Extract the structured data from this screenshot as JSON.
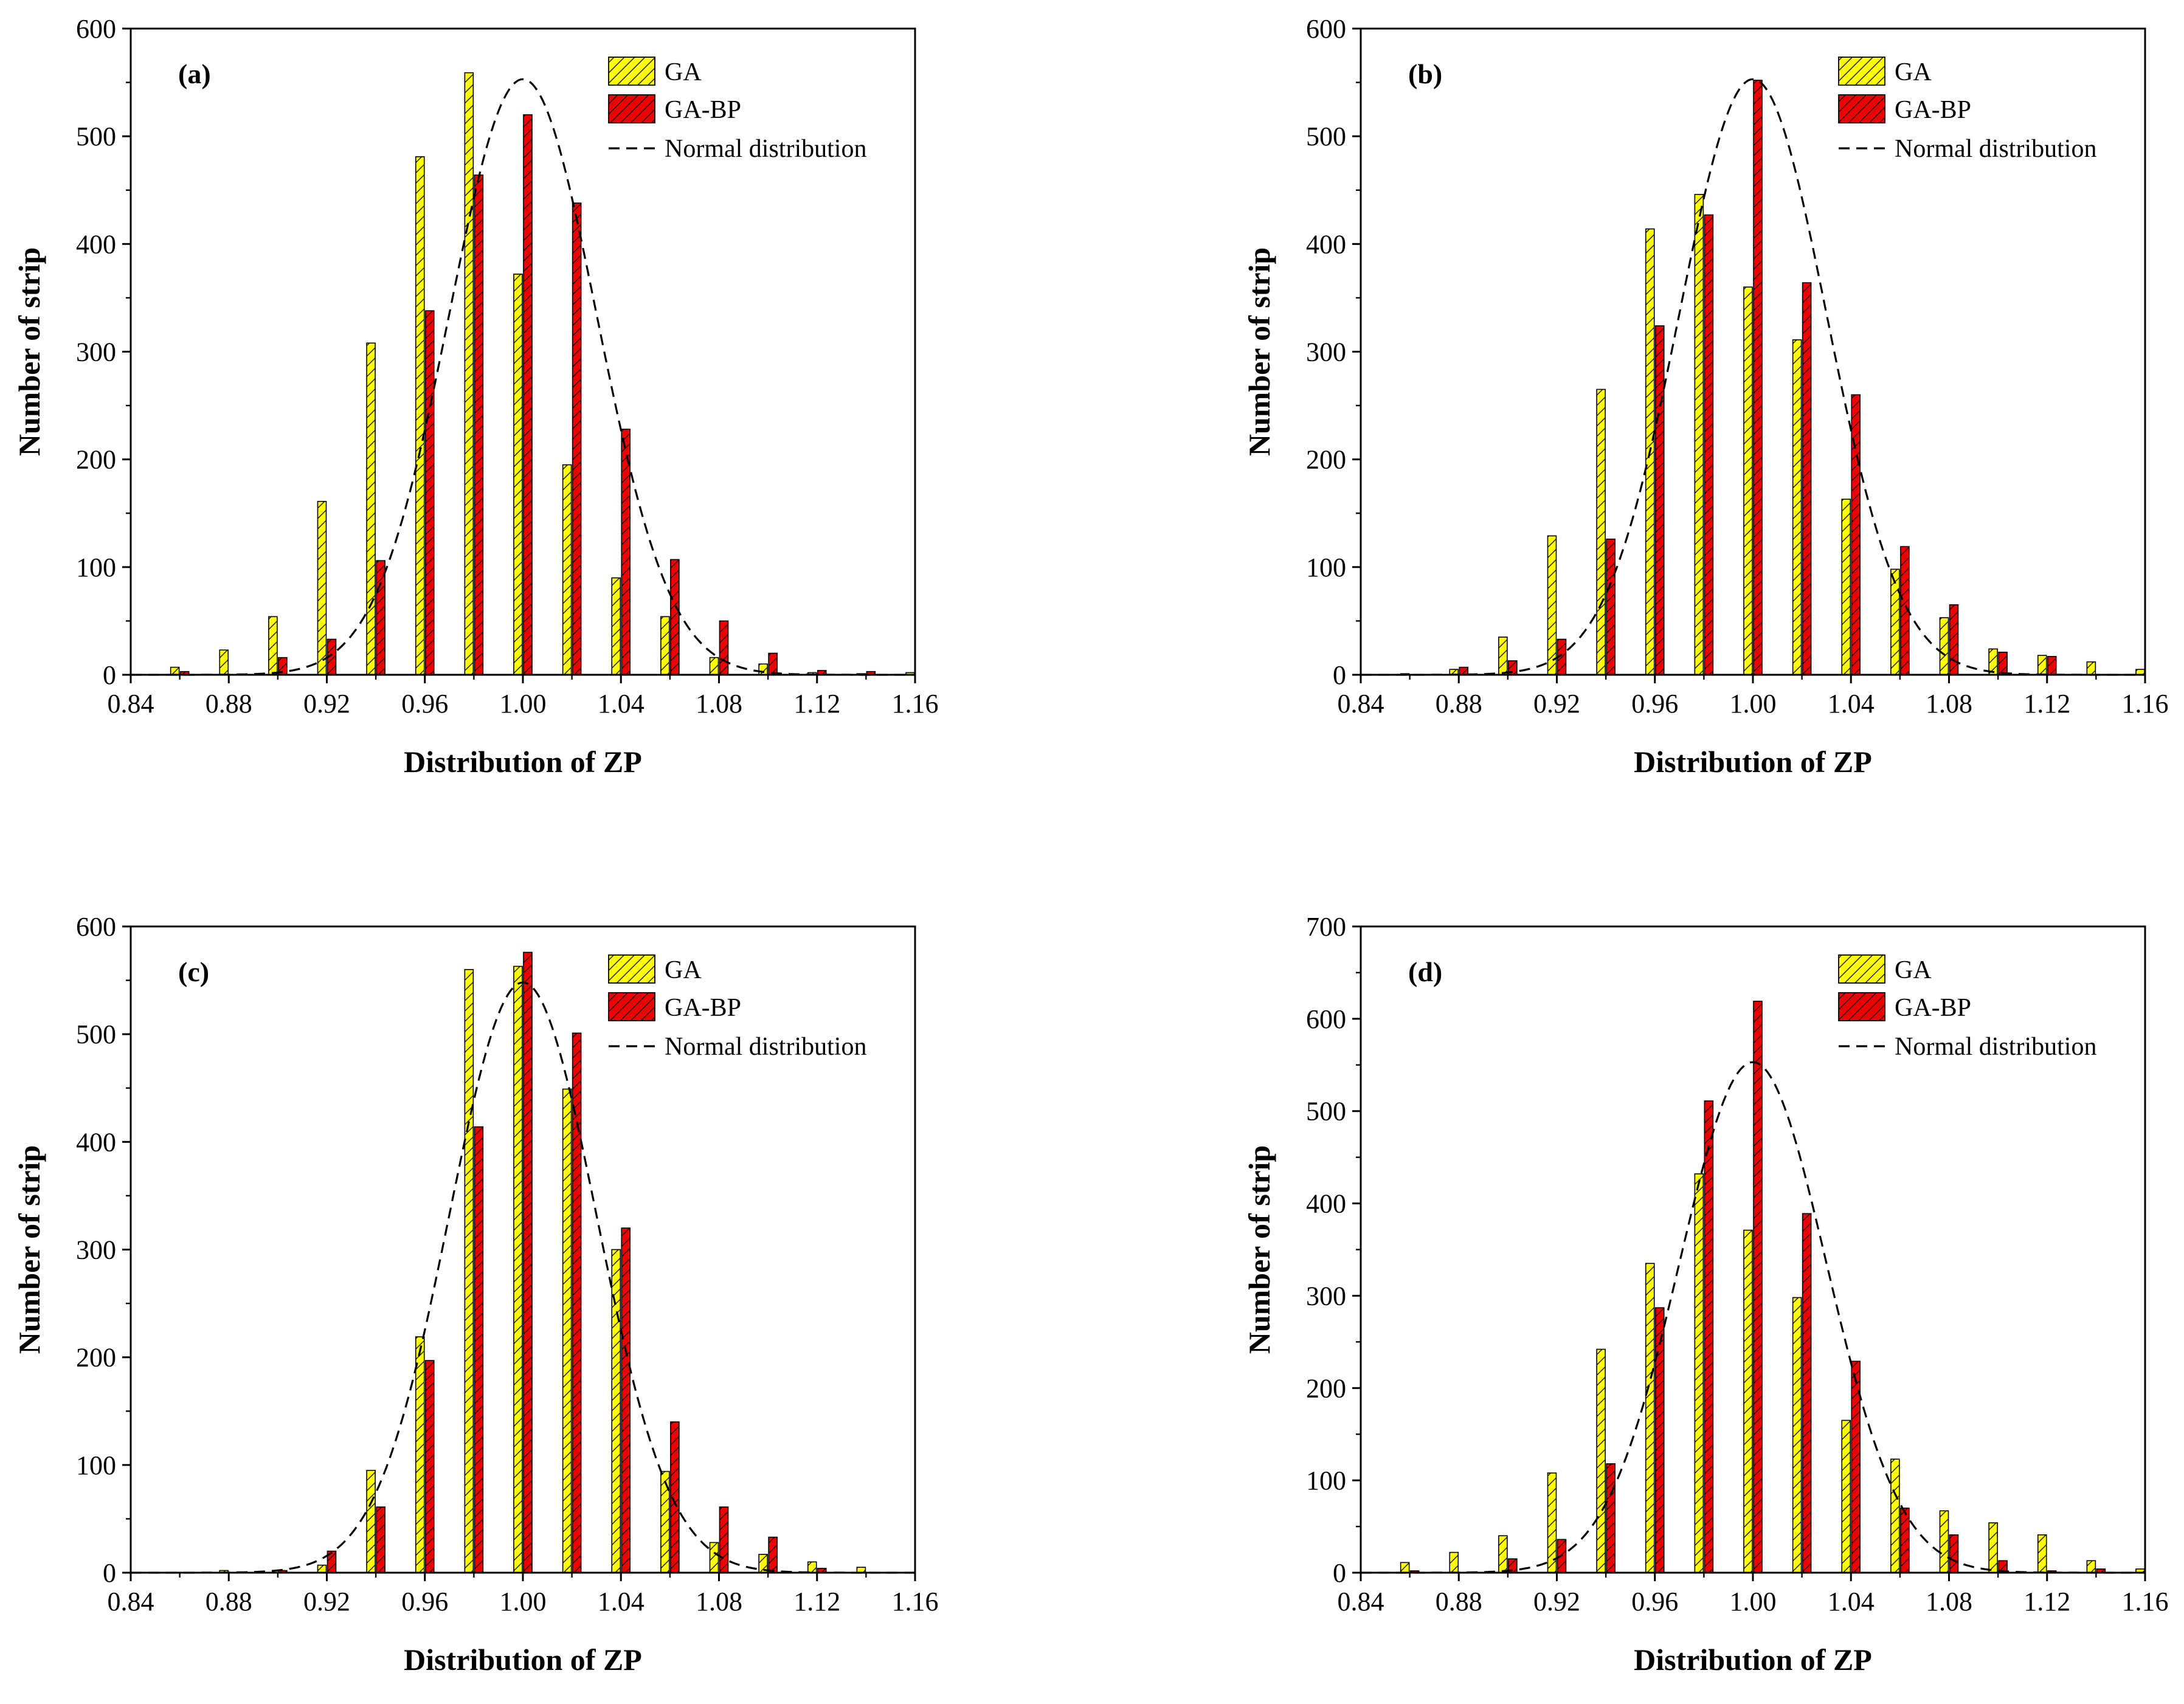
{
  "palette": {
    "ga_fill": "#ffff00",
    "gabp_fill": "#ee0000",
    "edge": "#000000",
    "curve": "#000000"
  },
  "chart_data": [
    {
      "type": "bar",
      "panel_label": "(a)",
      "xlabel": "Distribution of ZP",
      "ylabel": "Number of strip",
      "xlim": [
        0.84,
        1.16
      ],
      "ylim": [
        0,
        600
      ],
      "xticks": [
        "0.84",
        "0.88",
        "0.92",
        "0.96",
        "1.00",
        "1.04",
        "1.08",
        "1.12",
        "1.16"
      ],
      "yticks": [
        "0",
        "100",
        "200",
        "300",
        "400",
        "500",
        "600"
      ],
      "x": [
        0.86,
        0.88,
        0.9,
        0.92,
        0.94,
        0.96,
        0.98,
        1.0,
        1.02,
        1.04,
        1.06,
        1.08,
        1.1,
        1.12,
        1.14,
        1.16
      ],
      "series": [
        {
          "name": "GA",
          "values": [
            7,
            23,
            54,
            161,
            308,
            481,
            559,
            372,
            195,
            90,
            54,
            16,
            10,
            2,
            1,
            2
          ]
        },
        {
          "name": "GA-BP",
          "values": [
            3,
            0,
            16,
            33,
            106,
            338,
            464,
            520,
            438,
            228,
            107,
            50,
            20,
            4,
            3,
            0
          ]
        }
      ],
      "normal_curve": {
        "name": "Normal distribution",
        "mean": 1.0,
        "sd": 0.03,
        "peak": 553
      },
      "legend": [
        "GA",
        "GA-BP",
        "Normal distribution"
      ],
      "legend_position": "top-right",
      "grid": false
    },
    {
      "type": "bar",
      "panel_label": "(b)",
      "xlabel": "Distribution of ZP",
      "ylabel": "Number of strip",
      "xlim": [
        0.84,
        1.16
      ],
      "ylim": [
        0,
        600
      ],
      "xticks": [
        "0.84",
        "0.88",
        "0.92",
        "0.96",
        "1.00",
        "1.04",
        "1.08",
        "1.12",
        "1.16"
      ],
      "yticks": [
        "0",
        "100",
        "200",
        "300",
        "400",
        "500",
        "600"
      ],
      "x": [
        0.86,
        0.88,
        0.9,
        0.92,
        0.94,
        0.96,
        0.98,
        1.0,
        1.02,
        1.04,
        1.06,
        1.08,
        1.1,
        1.12,
        1.14,
        1.16
      ],
      "series": [
        {
          "name": "GA",
          "values": [
            1,
            5,
            35,
            129,
            265,
            414,
            446,
            360,
            311,
            163,
            98,
            53,
            24,
            18,
            12,
            5
          ]
        },
        {
          "name": "GA-BP",
          "values": [
            0,
            7,
            13,
            33,
            126,
            324,
            427,
            552,
            364,
            260,
            119,
            65,
            21,
            17,
            0,
            0
          ]
        }
      ],
      "normal_curve": {
        "name": "Normal distribution",
        "mean": 1.0,
        "sd": 0.03,
        "peak": 553
      },
      "legend": [
        "GA",
        "GA-BP",
        "Normal distribution"
      ],
      "legend_position": "top-right",
      "grid": false
    },
    {
      "type": "bar",
      "panel_label": "(c)",
      "xlabel": "Distribution of ZP",
      "ylabel": "Number of strip",
      "xlim": [
        0.84,
        1.16
      ],
      "ylim": [
        0,
        600
      ],
      "xticks": [
        "0.84",
        "0.88",
        "0.92",
        "0.96",
        "1.00",
        "1.04",
        "1.08",
        "1.12",
        "1.16"
      ],
      "yticks": [
        "0",
        "100",
        "200",
        "300",
        "400",
        "500",
        "600"
      ],
      "x": [
        0.86,
        0.88,
        0.9,
        0.92,
        0.94,
        0.96,
        0.98,
        1.0,
        1.02,
        1.04,
        1.06,
        1.08,
        1.1,
        1.12,
        1.14,
        1.16
      ],
      "series": [
        {
          "name": "GA",
          "values": [
            0,
            2,
            0,
            7,
            95,
            219,
            560,
            563,
            449,
            300,
            94,
            28,
            17,
            10,
            5,
            0
          ]
        },
        {
          "name": "GA-BP",
          "values": [
            0,
            0,
            2,
            20,
            61,
            197,
            414,
            576,
            501,
            320,
            140,
            61,
            33,
            4,
            0,
            0
          ]
        }
      ],
      "normal_curve": {
        "name": "Normal distribution",
        "mean": 1.0,
        "sd": 0.03,
        "peak": 548
      },
      "legend": [
        "GA",
        "GA-BP",
        "Normal distribution"
      ],
      "legend_position": "top-right",
      "grid": false
    },
    {
      "type": "bar",
      "panel_label": "(d)",
      "xlabel": "Distribution of ZP",
      "ylabel": "Number of strip",
      "xlim": [
        0.84,
        1.16
      ],
      "ylim": [
        0,
        700
      ],
      "xticks": [
        "0.84",
        "0.88",
        "0.92",
        "0.96",
        "1.00",
        "1.04",
        "1.08",
        "1.12",
        "1.16"
      ],
      "yticks": [
        "0",
        "100",
        "200",
        "300",
        "400",
        "500",
        "600",
        "700"
      ],
      "x": [
        0.86,
        0.88,
        0.9,
        0.92,
        0.94,
        0.96,
        0.98,
        1.0,
        1.02,
        1.04,
        1.06,
        1.08,
        1.1,
        1.12,
        1.14,
        1.16
      ],
      "series": [
        {
          "name": "GA",
          "values": [
            11,
            22,
            40,
            108,
            242,
            335,
            432,
            371,
            298,
            165,
            123,
            67,
            54,
            41,
            13,
            4
          ]
        },
        {
          "name": "GA-BP",
          "values": [
            2,
            0,
            15,
            36,
            118,
            287,
            511,
            619,
            389,
            229,
            70,
            41,
            13,
            2,
            4,
            0
          ]
        }
      ],
      "normal_curve": {
        "name": "Normal distribution",
        "mean": 1.0,
        "sd": 0.03,
        "peak": 553
      },
      "legend": [
        "GA",
        "GA-BP",
        "Normal distribution"
      ],
      "legend_position": "top-right",
      "grid": false
    }
  ]
}
